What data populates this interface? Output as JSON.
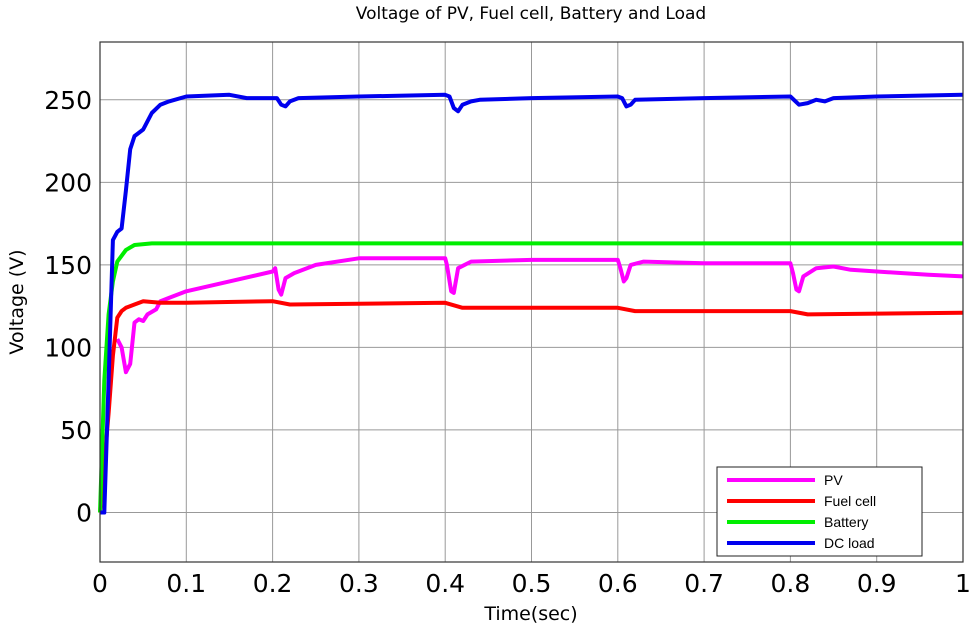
{
  "chart_data": {
    "type": "line",
    "title": "Voltage of PV, Fuel cell, Battery and Load",
    "xlabel": "Time(sec)",
    "ylabel": "Voltage (V)",
    "xlim": [
      0,
      1
    ],
    "ylim": [
      -30,
      285
    ],
    "xticks": [
      0,
      0.1,
      0.2,
      0.3,
      0.4,
      0.5,
      0.6,
      0.7,
      0.8,
      0.9,
      1
    ],
    "xtick_labels": [
      "0",
      "0.1",
      "0.2",
      "0.3",
      "0.4",
      "0.5",
      "0.6",
      "0.7",
      "0.8",
      "0.9",
      "1"
    ],
    "yticks": [
      0,
      50,
      100,
      150,
      200,
      250
    ],
    "ytick_labels": [
      "0",
      "50",
      "100",
      "150",
      "200",
      "250"
    ],
    "grid": true,
    "legend_position": "bottom-right",
    "series": [
      {
        "name": "PV",
        "color": "#ff00ff",
        "x": [
          0.02,
          0.025,
          0.03,
          0.035,
          0.04,
          0.045,
          0.05,
          0.055,
          0.065,
          0.07,
          0.08,
          0.1,
          0.15,
          0.2,
          0.203,
          0.207,
          0.21,
          0.215,
          0.225,
          0.25,
          0.3,
          0.4,
          0.402,
          0.407,
          0.41,
          0.415,
          0.43,
          0.5,
          0.6,
          0.603,
          0.607,
          0.61,
          0.615,
          0.63,
          0.7,
          0.8,
          0.803,
          0.807,
          0.81,
          0.815,
          0.83,
          0.85,
          0.87,
          0.9,
          0.93,
          0.96,
          1
        ],
        "y": [
          105,
          100,
          85,
          90,
          115,
          117,
          116,
          120,
          123,
          128,
          130,
          134,
          140,
          146,
          148,
          135,
          132,
          142,
          145,
          150,
          154,
          154,
          150,
          134,
          133,
          148,
          152,
          153,
          153,
          148,
          140,
          142,
          150,
          152,
          151,
          151,
          145,
          135,
          134,
          143,
          148,
          149,
          147,
          146,
          145,
          144,
          143
        ]
      },
      {
        "name": "Fuel cell",
        "color": "#ff0000",
        "x": [
          0,
          0.01,
          0.015,
          0.02,
          0.025,
          0.03,
          0.04,
          0.05,
          0.07,
          0.1,
          0.2,
          0.22,
          0.4,
          0.42,
          0.6,
          0.62,
          0.8,
          0.82,
          1
        ],
        "y": [
          0,
          60,
          95,
          118,
          122,
          124,
          126,
          128,
          127,
          127,
          128,
          126,
          127,
          124,
          124,
          122,
          122,
          120,
          121
        ]
      },
      {
        "name": "Battery",
        "color": "#00ee00",
        "x": [
          0,
          0.005,
          0.01,
          0.015,
          0.02,
          0.03,
          0.04,
          0.06,
          1
        ],
        "y": [
          0,
          80,
          120,
          140,
          152,
          159,
          162,
          163,
          163
        ]
      },
      {
        "name": "DC load",
        "color": "#0000ee",
        "x": [
          0,
          0.005,
          0.01,
          0.015,
          0.02,
          0.025,
          0.03,
          0.035,
          0.04,
          0.05,
          0.06,
          0.07,
          0.08,
          0.1,
          0.15,
          0.17,
          0.2,
          0.205,
          0.21,
          0.215,
          0.22,
          0.23,
          0.3,
          0.4,
          0.405,
          0.41,
          0.415,
          0.42,
          0.43,
          0.44,
          0.5,
          0.6,
          0.605,
          0.61,
          0.615,
          0.62,
          0.7,
          0.8,
          0.81,
          0.82,
          0.83,
          0.84,
          0.85,
          0.9,
          1
        ],
        "y": [
          0,
          0,
          80,
          165,
          170,
          172,
          195,
          220,
          228,
          232,
          242,
          247,
          249,
          252,
          253,
          251,
          251,
          251,
          247,
          246,
          249,
          251,
          252,
          253,
          252,
          245,
          243,
          247,
          249,
          250,
          251,
          252,
          251,
          246,
          247,
          250,
          251,
          252,
          247,
          248,
          250,
          249,
          251,
          252,
          253
        ]
      }
    ]
  }
}
